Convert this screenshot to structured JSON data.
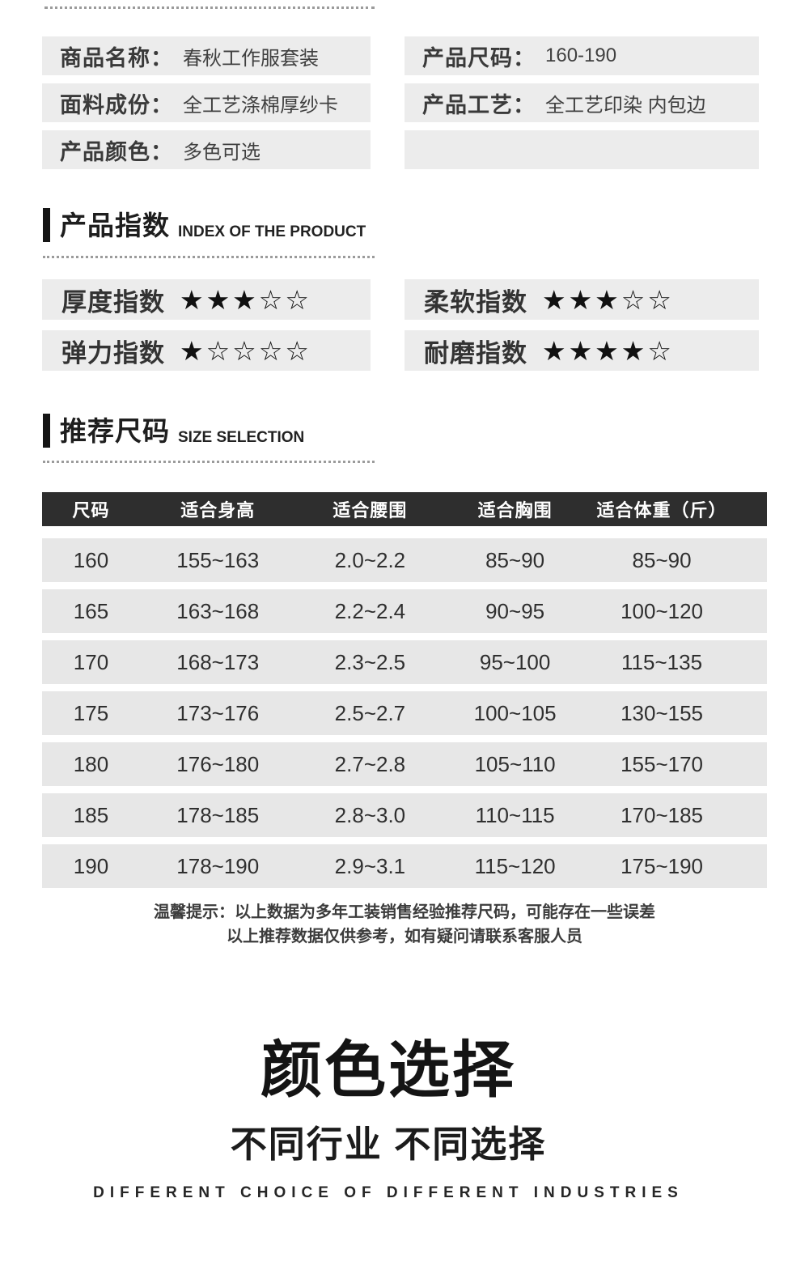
{
  "colors": {
    "box_bg": "#ececec",
    "row_bg": "#e7e7e7",
    "table_header_bg": "#2e2e2e",
    "text": "#333333",
    "table_header_text": "#ffffff",
    "heading_bar": "#151515",
    "dotted_line": "#9b9b9b"
  },
  "stars": {
    "filled": "★",
    "empty": "☆"
  },
  "product_info": {
    "left": [
      {
        "label": "商品名称：",
        "value": "春秋工作服套装"
      },
      {
        "label": "面料成份：",
        "value": "全工艺涤棉厚纱卡"
      },
      {
        "label": "产品颜色：",
        "value": "多色可选"
      }
    ],
    "right": [
      {
        "label": "产品尺码：",
        "value": "160-190"
      },
      {
        "label": "产品工艺：",
        "value": "全工艺印染 内包边"
      },
      {
        "label": "",
        "value": ""
      }
    ]
  },
  "index_section": {
    "title_cn": "产品指数",
    "title_en": "INDEX OF THE PRODUCT",
    "items": [
      {
        "label": "厚度指数",
        "rating": 3,
        "max": 5
      },
      {
        "label": "柔软指数",
        "rating": 3,
        "max": 5
      },
      {
        "label": "弹力指数",
        "rating": 1,
        "max": 5
      },
      {
        "label": "耐磨指数",
        "rating": 4,
        "max": 5
      }
    ]
  },
  "size_section": {
    "title_cn": "推荐尺码",
    "title_en": "SIZE SELECTION"
  },
  "chart_data": {
    "type": "table",
    "title": "推荐尺码 SIZE SELECTION",
    "columns": [
      "尺码",
      "适合身高",
      "适合腰围",
      "适合胸围",
      "适合体重（斤）"
    ],
    "rows": [
      [
        "160",
        "155~163",
        "2.0~2.2",
        "85~90",
        "85~90"
      ],
      [
        "165",
        "163~168",
        "2.2~2.4",
        "90~95",
        "100~120"
      ],
      [
        "170",
        "168~173",
        "2.3~2.5",
        "95~100",
        "115~135"
      ],
      [
        "175",
        "173~176",
        "2.5~2.7",
        "100~105",
        "130~155"
      ],
      [
        "180",
        "176~180",
        "2.7~2.8",
        "105~110",
        "155~170"
      ],
      [
        "185",
        "178~185",
        "2.8~3.0",
        "110~115",
        "170~185"
      ],
      [
        "190",
        "178~190",
        "2.9~3.1",
        "115~120",
        "175~190"
      ]
    ]
  },
  "note": {
    "line1": "温馨提示：以上数据为多年工装销售经验推荐尺码，可能存在一些误差",
    "line2": "以上推荐数据仅供参考，如有疑问请联系客服人员"
  },
  "color_section": {
    "title": "颜色选择",
    "subtitle": "不同行业 不同选择",
    "subtitle_en": "DIFFERENT CHOICE OF DIFFERENT INDUSTRIES"
  }
}
